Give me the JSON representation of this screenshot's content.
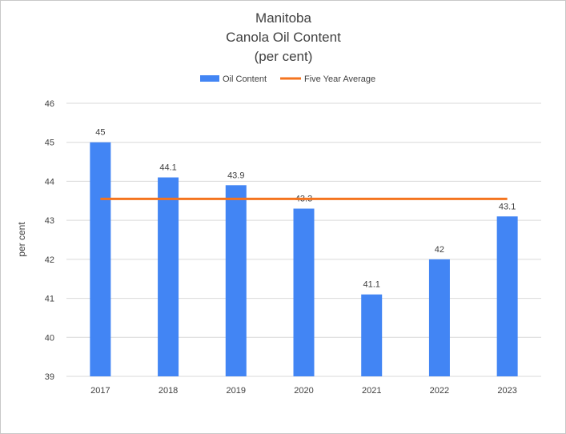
{
  "chart_data": {
    "type": "bar",
    "title_lines": [
      "Manitoba",
      "Canola Oil Content",
      "(per cent)"
    ],
    "xlabel": "",
    "ylabel": "per cent",
    "categories": [
      "2017",
      "2018",
      "2019",
      "2020",
      "2021",
      "2022",
      "2023"
    ],
    "series": [
      {
        "name": "Oil Content",
        "type": "bar",
        "color": "#4285F4",
        "values": [
          45,
          44.1,
          43.9,
          43.3,
          41.1,
          42,
          43.1
        ],
        "data_labels": [
          "45",
          "44.1",
          "43.9",
          "43.3",
          "41.1",
          "42",
          "43.1"
        ]
      },
      {
        "name": "Five Year Average",
        "type": "line",
        "color": "#F4741F",
        "values": [
          43.55,
          43.55,
          43.55,
          43.55,
          43.55,
          43.55,
          43.55
        ]
      }
    ],
    "ylim": [
      39,
      46
    ],
    "yticks": [
      "39",
      "40",
      "41",
      "42",
      "43",
      "44",
      "45",
      "46"
    ],
    "grid": true,
    "legend_position": "top"
  }
}
